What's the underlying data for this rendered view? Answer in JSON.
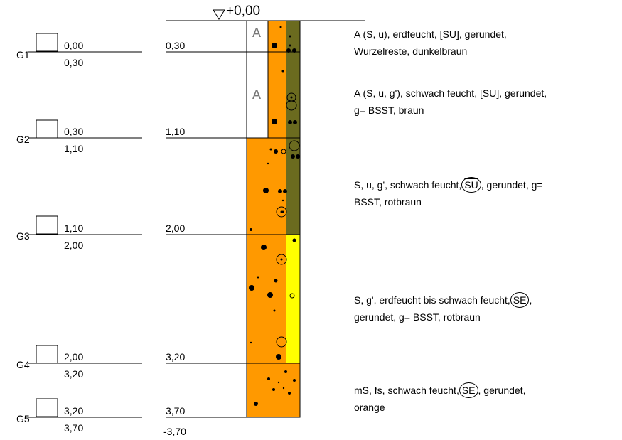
{
  "datum_label": "+0,00",
  "bottom_label": "-3,70",
  "samples": [
    {
      "id": "G1",
      "top": "0,00",
      "bottom": "0,30"
    },
    {
      "id": "G2",
      "top": "0,30",
      "bottom": "1,10"
    },
    {
      "id": "G3",
      "top": "1,10",
      "bottom": "2,00"
    },
    {
      "id": "G4",
      "top": "2,00",
      "bottom": "3,20"
    },
    {
      "id": "G5",
      "top": "3,20",
      "bottom": "3,70"
    }
  ],
  "depth_marks": [
    "0,30",
    "1,10",
    "2,00",
    "3,20",
    "3,70"
  ],
  "layer_symbols": [
    "A",
    "A"
  ],
  "layers": [
    {
      "a": "A (S, u), erdfeucht, [",
      "sym": "SU",
      "b": "], gerundet,",
      "line2": "Wurzelreste, dunkelbraun"
    },
    {
      "a": "A (S, u, g'), schwach feucht, [",
      "sym": "SU",
      "b": "], gerundet,",
      "line2": "g= BSST, braun"
    },
    {
      "a": "S, u, g', schwach feucht,",
      "sym": "SU",
      "b": ", gerundet, g=",
      "line2": "BSST, rotbraun"
    },
    {
      "a": "S, g', erdfeucht bis schwach feucht,",
      "sym": "SE",
      "b": ",",
      "line2": "gerundet, g= BSST, rotbraun"
    },
    {
      "a": "mS, fs, schwach feucht,",
      "sym": "SE",
      "b": ", gerundet,",
      "line2": "orange"
    }
  ],
  "colors": {
    "orange": "#ff9900",
    "olive": "#6b6b1f",
    "yellow": "#ffff00",
    "white": "#ffffff"
  }
}
